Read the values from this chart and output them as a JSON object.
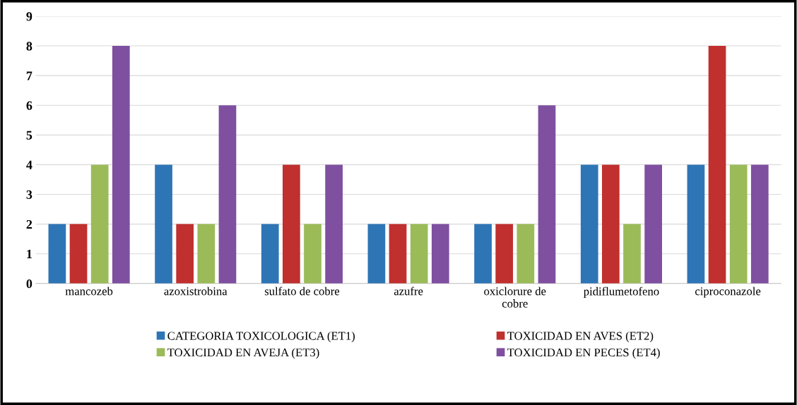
{
  "chart_data": {
    "type": "bar",
    "categories": [
      "mancozeb",
      "azoxistrobina",
      "sulfato de cobre",
      "azufre",
      "oxiclorure de\ncobre",
      "pidiflumetofeno",
      "ciproconazole"
    ],
    "series": [
      {
        "name": "CATEGORIA TOXICOLOGICA (ET1)",
        "color": "#2e75b6",
        "values": [
          2,
          4,
          2,
          2,
          2,
          4,
          4
        ]
      },
      {
        "name": "TOXICIDAD EN AVES (ET2)",
        "color": "#c0302e",
        "values": [
          2,
          2,
          4,
          2,
          2,
          4,
          8
        ]
      },
      {
        "name": "TOXICIDAD EN AVEJA (ET3)",
        "color": "#9bbb59",
        "values": [
          4,
          2,
          2,
          2,
          2,
          2,
          4
        ]
      },
      {
        "name": "TOXICIDAD EN PECES (ET4)",
        "color": "#7f4fa0",
        "values": [
          8,
          6,
          4,
          2,
          6,
          4,
          4
        ]
      }
    ],
    "ylim": [
      0,
      9
    ],
    "yticks": [
      0,
      1,
      2,
      3,
      4,
      5,
      6,
      7,
      8,
      9
    ],
    "grid": "y",
    "legend": "bottom"
  }
}
